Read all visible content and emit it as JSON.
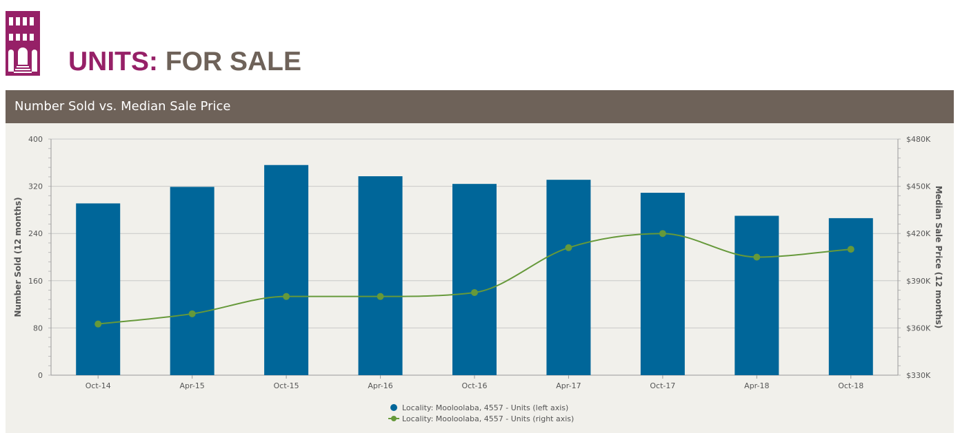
{
  "header": {
    "title_part1": "UNITS:",
    "title_part2": "FOR SALE",
    "logo_icon": "building-facade-icon"
  },
  "panel": {
    "title": "Number Sold vs. Median Sale Price"
  },
  "colors": {
    "brand": "#962067",
    "secondary": "#6e6259",
    "bars": "#006699",
    "line": "#66993a",
    "panel_bg": "#f1f0eb"
  },
  "chart_data": {
    "type": "bar",
    "categories": [
      "Oct-14",
      "Apr-15",
      "Oct-15",
      "Apr-16",
      "Oct-16",
      "Apr-17",
      "Oct-17",
      "Apr-18",
      "Oct-18"
    ],
    "series": [
      {
        "name": "Locality: Mooloolaba, 4557 - Units (left axis)",
        "type": "bar",
        "axis": "left",
        "values": [
          291,
          319,
          356,
          337,
          324,
          331,
          309,
          270,
          266
        ]
      },
      {
        "name": "Locality: Mooloolaba, 4557 - Units (right axis)",
        "type": "line",
        "axis": "right",
        "values": [
          362500,
          369000,
          380000,
          380000,
          382500,
          411000,
          420000,
          405000,
          410000
        ]
      }
    ],
    "ylabel": "Number Sold (12 months)",
    "ylabel_right": "Median Sale Price (12 months)",
    "ylim": [
      0,
      400
    ],
    "ylim_right": [
      330000,
      480000
    ],
    "y_ticks": [
      "0",
      "80",
      "160",
      "240",
      "320",
      "400"
    ],
    "y_ticks_right": [
      "$330K",
      "$360K",
      "$390K",
      "$420K",
      "$450K",
      "$480K"
    ],
    "grid": true,
    "legend_position": "bottom"
  }
}
